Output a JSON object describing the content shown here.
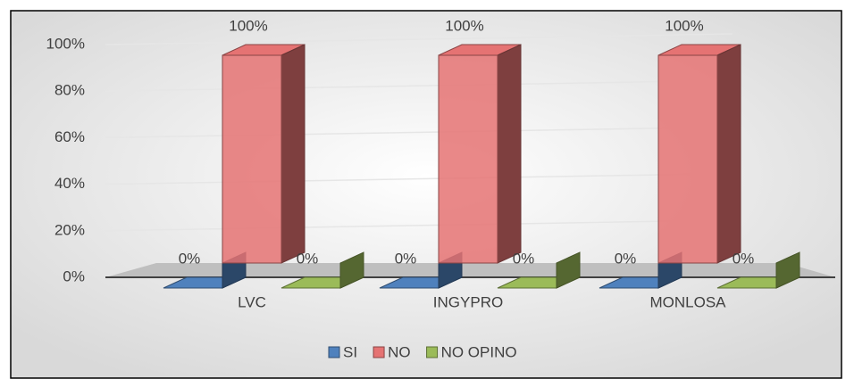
{
  "chart_data": {
    "type": "bar3d",
    "categories": [
      "LVC",
      "INGYPRO",
      "MONLOSA"
    ],
    "series": [
      {
        "name": "SI",
        "color": "#4f81bd",
        "values": [
          0,
          0,
          0
        ],
        "value_labels": [
          "0%",
          "0%",
          "0%"
        ]
      },
      {
        "name": "NO",
        "color": "#e57373",
        "values": [
          100,
          100,
          100
        ],
        "value_labels": [
          "100%",
          "100%",
          "100%"
        ]
      },
      {
        "name": "NO OPINO",
        "color": "#9bbb59",
        "values": [
          0,
          0,
          0
        ],
        "value_labels": [
          "0%",
          "0%",
          "0%"
        ]
      }
    ],
    "ylim": [
      0,
      100
    ],
    "yticks": [
      {
        "value": 0,
        "label": "0%"
      },
      {
        "value": 20,
        "label": "20%"
      },
      {
        "value": 40,
        "label": "40%"
      },
      {
        "value": 60,
        "label": "60%"
      },
      {
        "value": 80,
        "label": "80%"
      },
      {
        "value": 100,
        "label": "100%"
      }
    ],
    "grid": true,
    "legend": "bottom"
  }
}
